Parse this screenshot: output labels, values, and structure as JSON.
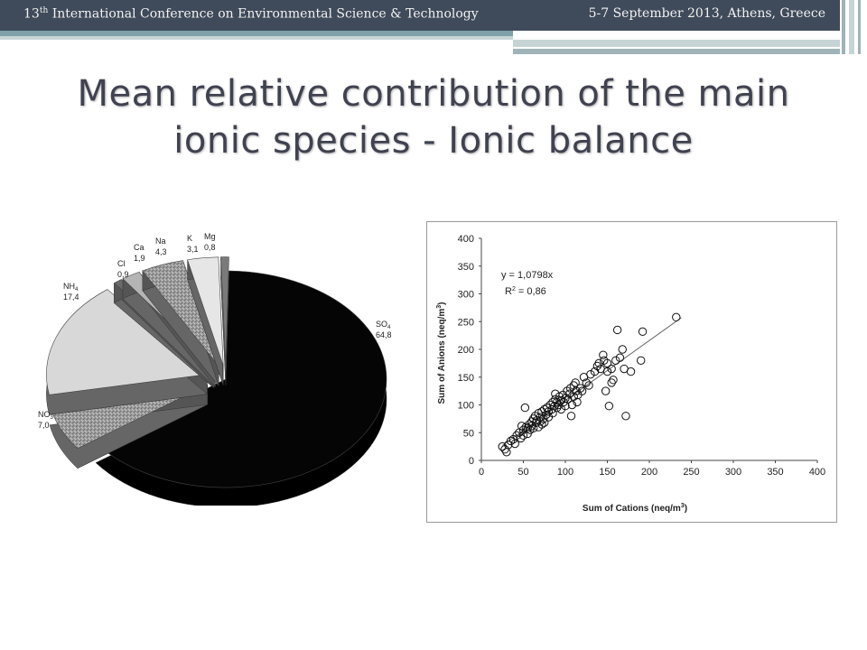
{
  "header": {
    "ordinal_number": "13",
    "ordinal_suffix": "th",
    "conference": " International Conference on Environmental Science & Technology",
    "date_place": "5-7 September 2013, Athens, Greece"
  },
  "slide": {
    "title_line1": "Mean relative contribution of the main",
    "title_line2": "ionic species - Ionic balance"
  },
  "chart_data": [
    {
      "type": "pie",
      "slices": [
        {
          "label": "SO",
          "sub": "4",
          "value": 64.8,
          "value_text": "64,8",
          "color": "#050505"
        },
        {
          "label": "NO",
          "sub": "3",
          "value": 7.0,
          "value_text": "7,0",
          "color": "#9a9a9a"
        },
        {
          "label": "NH",
          "sub": "4",
          "value": 17.4,
          "value_text": "17,4",
          "color": "#d8d8d8"
        },
        {
          "label": "Cl",
          "sub": "",
          "value": 0.9,
          "value_text": "0,9",
          "color": "#6a6a6a"
        },
        {
          "label": "Ca",
          "sub": "",
          "value": 1.9,
          "value_text": "1,9",
          "color": "#b4b4b4"
        },
        {
          "label": "Na",
          "sub": "",
          "value": 4.3,
          "value_text": "4,3",
          "color": "#8a8a8a"
        },
        {
          "label": "K",
          "sub": "",
          "value": 3.1,
          "value_text": "3,1",
          "color": "#e6e6e6"
        },
        {
          "label": "Mg",
          "sub": "",
          "value": 0.8,
          "value_text": "0,8",
          "color": "#7a7a7a"
        }
      ]
    },
    {
      "type": "scatter",
      "xlabel_text": "Sum of Cations (neq/m",
      "ylabel_text": "Sum of Anions (neq/m",
      "unit_sup": "3",
      "xlim": [
        0,
        400
      ],
      "ylim": [
        0,
        400
      ],
      "xticks": [
        0,
        50,
        100,
        150,
        200,
        250,
        300,
        350,
        400
      ],
      "yticks": [
        0,
        50,
        100,
        150,
        200,
        250,
        300,
        350,
        400
      ],
      "equation": "y = 1,0798x",
      "r2_label": "R",
      "r2_value": " = 0,86",
      "fit_slope": 1.0798,
      "points": [
        [
          25,
          25
        ],
        [
          28,
          20
        ],
        [
          30,
          15
        ],
        [
          32,
          28
        ],
        [
          35,
          35
        ],
        [
          38,
          38
        ],
        [
          40,
          30
        ],
        [
          42,
          45
        ],
        [
          45,
          50
        ],
        [
          47,
          40
        ],
        [
          48,
          62
        ],
        [
          50,
          55
        ],
        [
          50,
          45
        ],
        [
          52,
          95
        ],
        [
          53,
          60
        ],
        [
          55,
          58
        ],
        [
          55,
          48
        ],
        [
          57,
          65
        ],
        [
          58,
          55
        ],
        [
          60,
          70
        ],
        [
          60,
          62
        ],
        [
          62,
          75
        ],
        [
          62,
          58
        ],
        [
          64,
          80
        ],
        [
          65,
          68
        ],
        [
          66,
          72
        ],
        [
          68,
          60
        ],
        [
          68,
          85
        ],
        [
          70,
          78
        ],
        [
          70,
          70
        ],
        [
          72,
          65
        ],
        [
          72,
          88
        ],
        [
          74,
          75
        ],
        [
          75,
          92
        ],
        [
          75,
          68
        ],
        [
          77,
          82
        ],
        [
          78,
          95
        ],
        [
          80,
          88
        ],
        [
          80,
          78
        ],
        [
          82,
          100
        ],
        [
          84,
          92
        ],
        [
          85,
          105
        ],
        [
          85,
          85
        ],
        [
          87,
          98
        ],
        [
          88,
          110
        ],
        [
          88,
          120
        ],
        [
          90,
          95
        ],
        [
          90,
          105
        ],
        [
          92,
          100
        ],
        [
          93,
          115
        ],
        [
          95,
          108
        ],
        [
          95,
          92
        ],
        [
          97,
          118
        ],
        [
          98,
          105
        ],
        [
          100,
          112
        ],
        [
          100,
          98
        ],
        [
          102,
          125
        ],
        [
          103,
          110
        ],
        [
          105,
          120
        ],
        [
          106,
          130
        ],
        [
          107,
          80
        ],
        [
          108,
          100
        ],
        [
          110,
          115
        ],
        [
          110,
          135
        ],
        [
          112,
          140
        ],
        [
          113,
          125
        ],
        [
          114,
          105
        ],
        [
          115,
          118
        ],
        [
          118,
          130
        ],
        [
          120,
          125
        ],
        [
          122,
          150
        ],
        [
          125,
          140
        ],
        [
          128,
          135
        ],
        [
          130,
          155
        ],
        [
          135,
          160
        ],
        [
          138,
          170
        ],
        [
          140,
          175
        ],
        [
          142,
          165
        ],
        [
          145,
          190
        ],
        [
          146,
          180
        ],
        [
          148,
          125
        ],
        [
          150,
          160
        ],
        [
          150,
          175
        ],
        [
          152,
          98
        ],
        [
          155,
          165
        ],
        [
          155,
          140
        ],
        [
          157,
          145
        ],
        [
          160,
          180
        ],
        [
          162,
          235
        ],
        [
          165,
          185
        ],
        [
          168,
          200
        ],
        [
          170,
          165
        ],
        [
          172,
          80
        ],
        [
          178,
          160
        ],
        [
          190,
          180
        ],
        [
          192,
          232
        ],
        [
          232,
          258
        ]
      ]
    }
  ]
}
